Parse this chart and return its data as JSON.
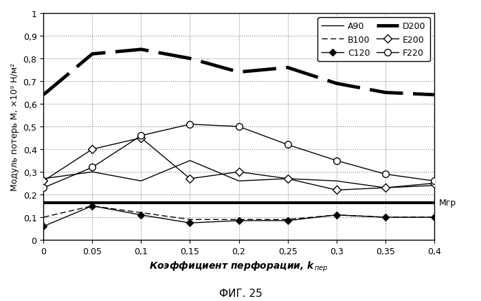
{
  "x": [
    0,
    0.05,
    0.1,
    0.15,
    0.2,
    0.25,
    0.3,
    0.35,
    0.4
  ],
  "A90": [
    0.27,
    0.3,
    0.26,
    0.35,
    0.26,
    0.27,
    0.26,
    0.23,
    0.24
  ],
  "B100": [
    0.1,
    0.15,
    0.12,
    0.09,
    0.09,
    0.09,
    0.11,
    0.1,
    0.1
  ],
  "C120": [
    0.06,
    0.15,
    0.11,
    0.075,
    0.085,
    0.085,
    0.11,
    0.1,
    0.1
  ],
  "D200": [
    0.64,
    0.82,
    0.84,
    0.8,
    0.74,
    0.76,
    0.69,
    0.65,
    0.64
  ],
  "E200": [
    0.26,
    0.4,
    0.45,
    0.27,
    0.3,
    0.27,
    0.22,
    0.23,
    0.25
  ],
  "F220": [
    0.23,
    0.32,
    0.46,
    0.51,
    0.5,
    0.42,
    0.35,
    0.29,
    0.26
  ],
  "Mgr": 0.165,
  "xlabel_main": "Коэффициент перфорации, k",
  "xlabel_sub": "пер",
  "ylabel": "Модуль потерь М, ×10⁹ Н/м²",
  "title": "ФИГ. 25",
  "xlim": [
    0,
    0.4
  ],
  "ylim": [
    0,
    1.0
  ],
  "ytick_vals": [
    0,
    0.1,
    0.2,
    0.3,
    0.4,
    0.5,
    0.6,
    0.7,
    0.8,
    0.9,
    1.0
  ],
  "ytick_labels": [
    "0",
    "0,1",
    "0,2",
    "0,3",
    "0,4",
    "0,5",
    "0,6",
    "0,7",
    "0,8",
    "0,9",
    "1"
  ],
  "xtick_vals": [
    0,
    0.05,
    0.1,
    0.15,
    0.2,
    0.25,
    0.3,
    0.35,
    0.4
  ],
  "xtick_labels": [
    "0",
    "0.05",
    "0,1",
    "0,15",
    "0,2",
    "0,25",
    "0,3",
    "0,35",
    "0,4"
  ],
  "Mgr_label": "Mгр"
}
